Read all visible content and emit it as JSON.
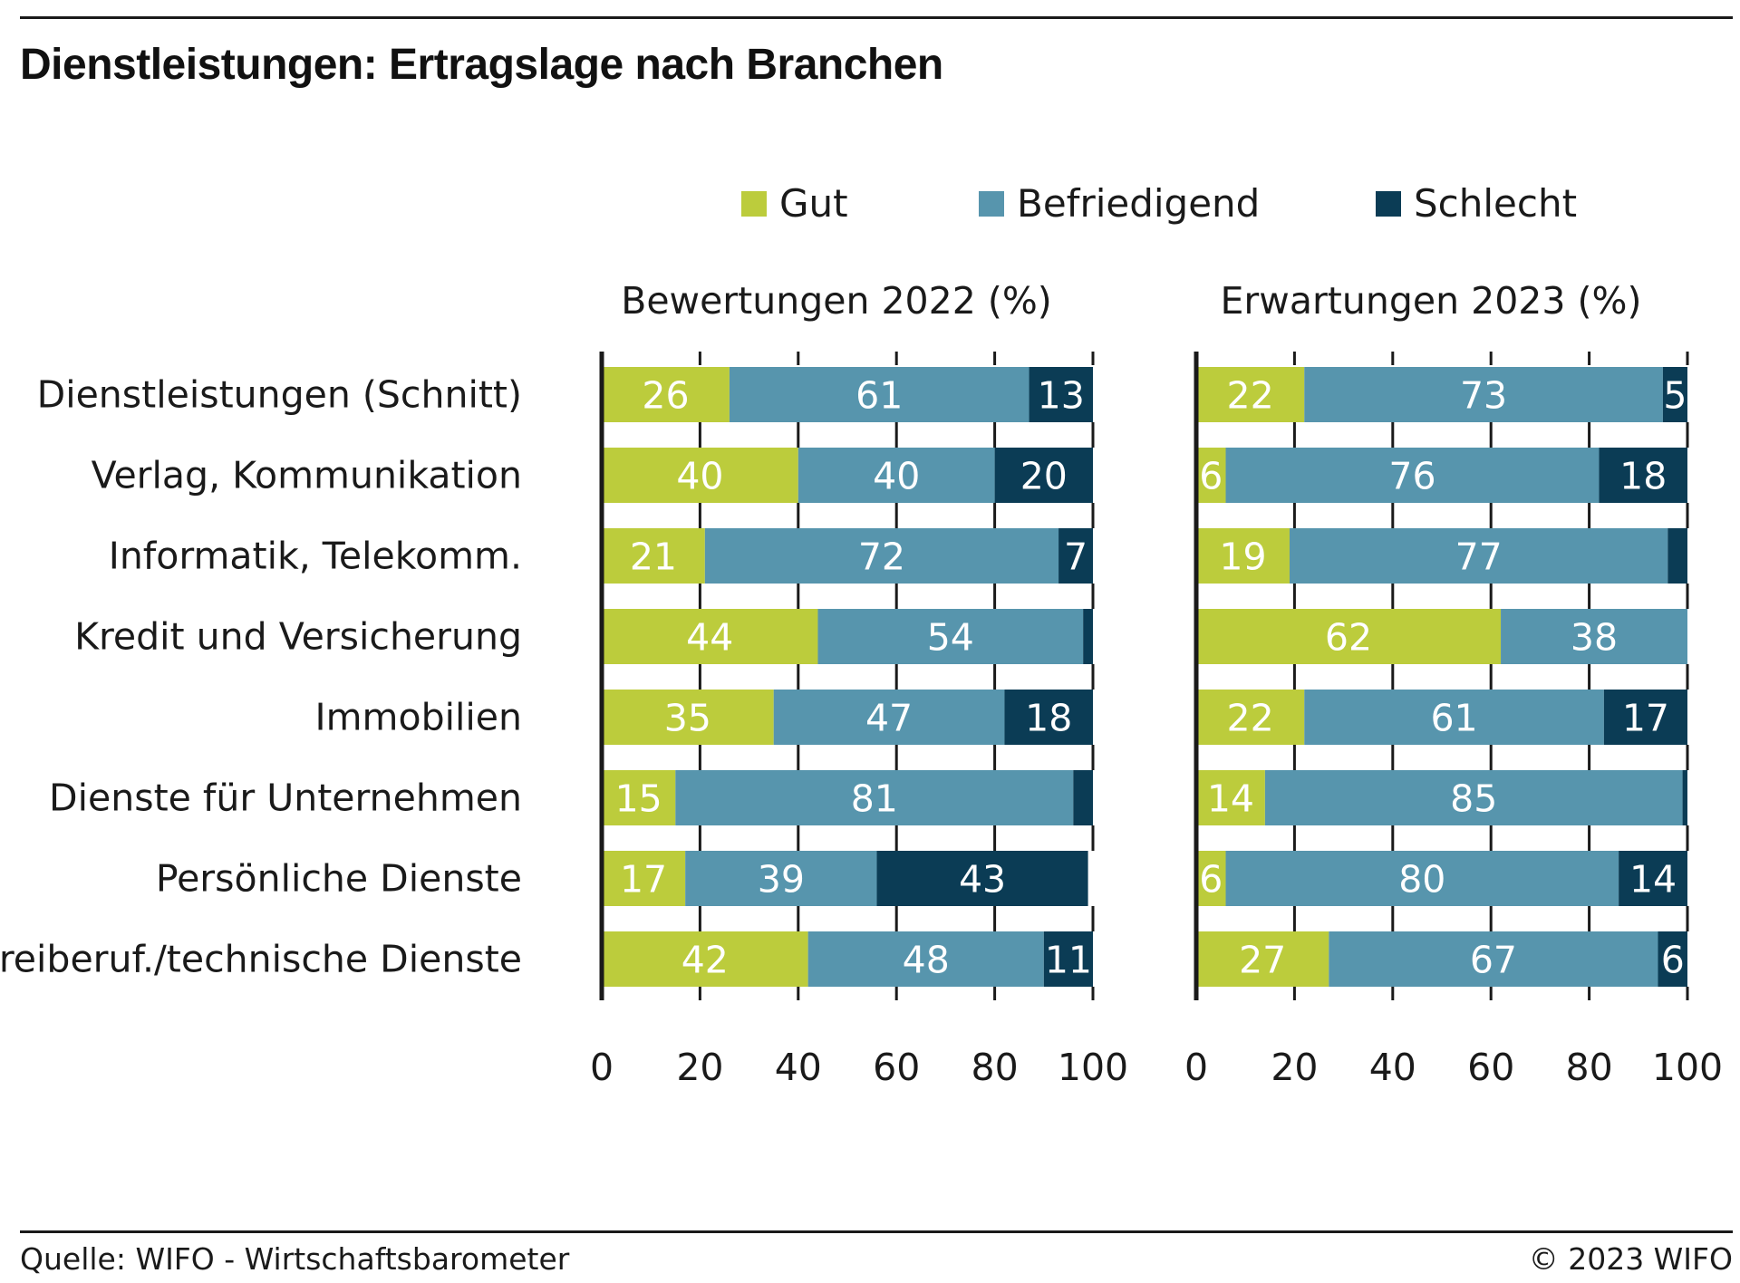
{
  "title": "Dienstleistungen: Ertragslage nach Branchen",
  "source": "Quelle: WIFO - Wirtschaftsbarometer",
  "copyright": "© 2023 WIFO",
  "colors": {
    "gut": "#bccc3c",
    "befriedigend": "#5795ad",
    "schlecht": "#0b3c55",
    "axis": "#1a1a1a",
    "label_on_bar": "#ffffff"
  },
  "chart_data": {
    "type": "bar",
    "orientation": "horizontal",
    "stacked": true,
    "categories": [
      "Dienstleistungen (Schnitt)",
      "Verlag, Kommunikation",
      "Informatik, Telekomm.",
      "Kredit und Versicherung",
      "Immobilien",
      "Dienste für Unternehmen",
      "Persönliche Dienste",
      "Freiberuf./technische Dienste"
    ],
    "legend": [
      "Gut",
      "Befriedigend",
      "Schlecht"
    ],
    "legend_position": "top",
    "xlim": [
      0,
      100
    ],
    "xticks": [
      0,
      20,
      40,
      60,
      80,
      100
    ],
    "grid": false,
    "panels": [
      {
        "subtitle": "Bewertungen 2022 (%)",
        "series": [
          {
            "name": "Gut",
            "values": [
              26,
              40,
              21,
              44,
              35,
              15,
              17,
              42
            ]
          },
          {
            "name": "Befriedigend",
            "values": [
              61,
              40,
              72,
              54,
              47,
              81,
              39,
              48
            ]
          },
          {
            "name": "Schlecht",
            "values": [
              13,
              20,
              7,
              2,
              18,
              4,
              43,
              11
            ]
          }
        ],
        "labels": [
          [
            "26",
            "61",
            "13"
          ],
          [
            "40",
            "40",
            "20"
          ],
          [
            "21",
            "72",
            "7"
          ],
          [
            "44",
            "54",
            ""
          ],
          [
            "35",
            "47",
            "18"
          ],
          [
            "15",
            "81",
            ""
          ],
          [
            "17",
            "39",
            "43"
          ],
          [
            "42",
            "48",
            "11"
          ]
        ]
      },
      {
        "subtitle": "Erwartungen 2023 (%)",
        "series": [
          {
            "name": "Gut",
            "values": [
              22,
              6,
              19,
              62,
              22,
              14,
              6,
              27
            ]
          },
          {
            "name": "Befriedigend",
            "values": [
              73,
              76,
              77,
              38,
              61,
              85,
              80,
              67
            ]
          },
          {
            "name": "Schlecht",
            "values": [
              5,
              18,
              4,
              0,
              17,
              1,
              14,
              6
            ]
          }
        ],
        "labels": [
          [
            "22",
            "73",
            "5"
          ],
          [
            "6",
            "76",
            "18"
          ],
          [
            "19",
            "77",
            ""
          ],
          [
            "62",
            "38",
            ""
          ],
          [
            "22",
            "61",
            "17"
          ],
          [
            "14",
            "85",
            ""
          ],
          [
            "6",
            "80",
            "14"
          ],
          [
            "27",
            "67",
            "6"
          ]
        ]
      }
    ]
  }
}
